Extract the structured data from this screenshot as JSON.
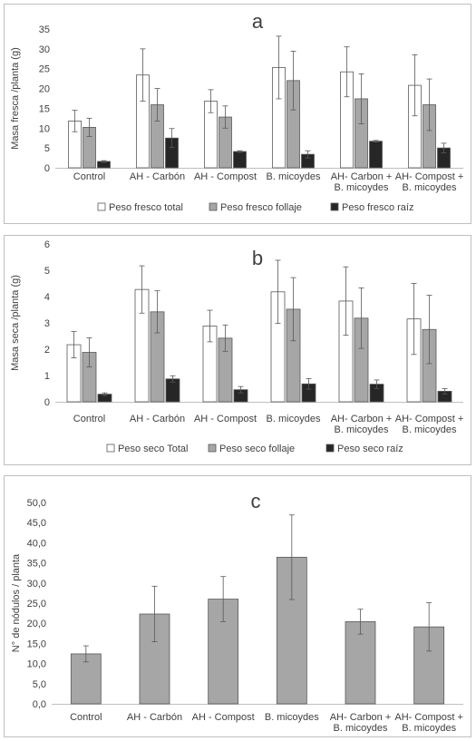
{
  "chart_data": [
    {
      "type": "bar",
      "title": "a",
      "ylabel": "Masa fresca /planta (g)",
      "ylim": [
        0,
        35
      ],
      "yticks": [
        0,
        5,
        10,
        15,
        20,
        25,
        30,
        35
      ],
      "ytick_labels": [
        "0",
        "5",
        "10",
        "15",
        "20",
        "25",
        "30",
        "35"
      ],
      "grid": false,
      "legend_position": "bottom",
      "categories": [
        [
          "Control"
        ],
        [
          "AH - Carbón"
        ],
        [
          "AH - Compost"
        ],
        [
          "B. micoydes"
        ],
        [
          "AH- Carbon +",
          "B. micoydes"
        ],
        [
          "AH- Compost +",
          "B. micoydes"
        ]
      ],
      "series": [
        {
          "name": "Peso fresco total",
          "color": "#ffffff",
          "values": [
            11.8,
            23.4,
            16.8,
            25.3,
            24.2,
            20.8
          ],
          "errors": [
            2.7,
            6.6,
            2.9,
            7.9,
            6.3,
            7.7
          ]
        },
        {
          "name": "Peso fresco follaje",
          "color": "#a6a6a6",
          "values": [
            10.2,
            15.9,
            12.8,
            22.0,
            17.4,
            15.9
          ],
          "errors": [
            2.3,
            4.1,
            2.8,
            7.4,
            6.3,
            6.5
          ]
        },
        {
          "name": "Peso fresco raíz",
          "color": "#262626",
          "values": [
            1.6,
            7.5,
            4.1,
            3.4,
            6.7,
            5.0
          ],
          "errors": [
            0.2,
            2.4,
            0.2,
            0.9,
            0.2,
            1.2
          ]
        }
      ]
    },
    {
      "type": "bar",
      "title": "b",
      "ylabel": "Masa seca /planta (g)",
      "ylim": [
        0,
        6
      ],
      "yticks": [
        0,
        1,
        2,
        3,
        4,
        5,
        6
      ],
      "ytick_labels": [
        "0",
        "1",
        "2",
        "3",
        "4",
        "5",
        "6"
      ],
      "grid": false,
      "legend_position": "bottom",
      "categories": [
        [
          "Control"
        ],
        [
          "AH - Carbón"
        ],
        [
          "AH - Compost"
        ],
        [
          "B. micoydes"
        ],
        [
          "AH- Carbon +",
          "B. micoydes"
        ],
        [
          "AH- Compost +",
          "B. micoydes"
        ]
      ],
      "series": [
        {
          "name": "Peso seco Total",
          "color": "#ffffff",
          "values": [
            2.17,
            4.27,
            2.88,
            4.18,
            3.83,
            3.15
          ],
          "errors": [
            0.5,
            0.9,
            0.6,
            1.2,
            1.3,
            1.35
          ]
        },
        {
          "name": "Peso seco follaje",
          "color": "#a6a6a6",
          "values": [
            1.88,
            3.42,
            2.42,
            3.52,
            3.18,
            2.75
          ],
          "errors": [
            0.55,
            0.8,
            0.5,
            1.2,
            1.15,
            1.3
          ]
        },
        {
          "name": "Peso seco raíz",
          "color": "#262626",
          "values": [
            0.29,
            0.87,
            0.46,
            0.68,
            0.67,
            0.4
          ],
          "errors": [
            0.05,
            0.12,
            0.12,
            0.2,
            0.16,
            0.1
          ]
        }
      ]
    },
    {
      "type": "bar",
      "title": "c",
      "ylabel": "N° de nódulos / planta",
      "ylim": [
        0,
        50
      ],
      "yticks": [
        0,
        5,
        10,
        15,
        20,
        25,
        30,
        35,
        40,
        45,
        50
      ],
      "ytick_labels": [
        "0,0",
        "5,0",
        "10,0",
        "15,0",
        "20,0",
        "25,0",
        "30,0",
        "35,0",
        "40,0",
        "45,0",
        "50,0"
      ],
      "grid": false,
      "categories": [
        [
          "Control"
        ],
        [
          "AH - Carbón"
        ],
        [
          "AH - Compost"
        ],
        [
          "B. micoydes"
        ],
        [
          "AH- Carbon +",
          "B. micoydes"
        ],
        [
          "AH- Compost +",
          "B. micoydes"
        ]
      ],
      "series": [
        {
          "color": "#a6a6a6",
          "values": [
            12.4,
            22.3,
            26.0,
            36.4,
            20.4,
            19.1
          ],
          "errors": [
            2.0,
            6.9,
            5.6,
            10.5,
            3.1,
            6.0
          ]
        }
      ]
    }
  ]
}
